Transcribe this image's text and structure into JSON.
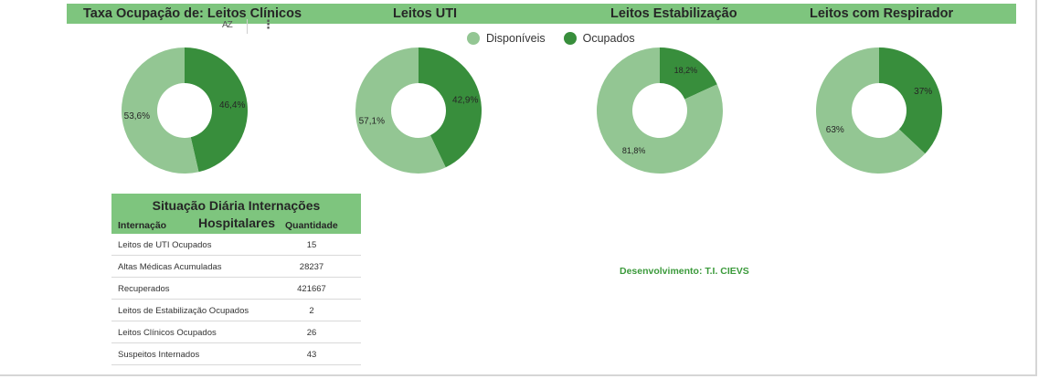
{
  "colors": {
    "header_bg": "#7ec57e",
    "disponiveis": "#93c693",
    "ocupados": "#388e3c",
    "footer_text": "#3b9a3b"
  },
  "header": {
    "sort_icon": "AZ",
    "more_icon": "⋮"
  },
  "chart_data": [
    {
      "type": "pie",
      "variant": "donut",
      "title": "Taxa Ocupação de:  Leitos Clínicos",
      "series": [
        {
          "name": "Disponíveis",
          "value": 53.6,
          "label": "53,6%"
        },
        {
          "name": "Ocupados",
          "value": 46.4,
          "label": "46,4%"
        }
      ],
      "legend": [
        "Disponíveis",
        "Ocupados"
      ],
      "legend_position": "top"
    },
    {
      "type": "pie",
      "variant": "donut",
      "title": "Leitos UTI",
      "series": [
        {
          "name": "Disponíveis",
          "value": 57.1,
          "label": "57,1%"
        },
        {
          "name": "Ocupados",
          "value": 42.9,
          "label": "42,9%"
        }
      ]
    },
    {
      "type": "pie",
      "variant": "donut",
      "title": "Leitos Estabilização",
      "series": [
        {
          "name": "Disponíveis",
          "value": 81.8,
          "label": "81,8%"
        },
        {
          "name": "Ocupados",
          "value": 18.2,
          "label": "18,2%"
        }
      ]
    },
    {
      "type": "pie",
      "variant": "donut",
      "title": "Leitos com Respirador",
      "series": [
        {
          "name": "Disponíveis",
          "value": 63,
          "label": "63%"
        },
        {
          "name": "Ocupados",
          "value": 37,
          "label": "37%"
        }
      ]
    }
  ],
  "table": {
    "title_line1": "Situação Diária Internações",
    "title_line2": "Hospitalares",
    "col_name": "Internação",
    "col_qty": "Quantidade",
    "rows": [
      {
        "name": "Leitos de UTI Ocupados",
        "qty": "15"
      },
      {
        "name": "Altas Médicas Acumuladas",
        "qty": "28237"
      },
      {
        "name": "Recuperados",
        "qty": "421667"
      },
      {
        "name": "Leitos de Estabilização Ocupados",
        "qty": "2"
      },
      {
        "name": "Leitos Clínicos Ocupados",
        "qty": "26"
      },
      {
        "name": "Suspeitos Internados",
        "qty": "43"
      }
    ]
  },
  "footer": {
    "credit": "Desenvolvimento: T.I. CIEVS"
  }
}
